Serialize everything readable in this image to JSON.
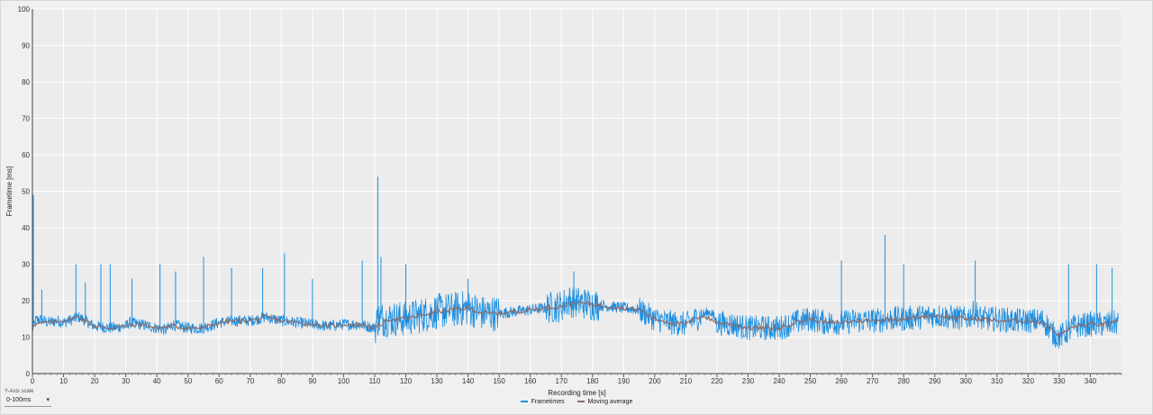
{
  "chart_data": {
    "type": "line",
    "xlabel": "Recording time [s]",
    "ylabel": "Frametime [ms]",
    "xlim": [
      0,
      350
    ],
    "ylim": [
      0,
      100
    ],
    "x_ticks": [
      0,
      10,
      20,
      30,
      40,
      50,
      60,
      70,
      80,
      90,
      100,
      110,
      120,
      130,
      140,
      150,
      160,
      170,
      180,
      190,
      200,
      210,
      220,
      230,
      240,
      250,
      260,
      270,
      280,
      290,
      300,
      310,
      320,
      330,
      340
    ],
    "y_ticks": [
      0,
      10,
      20,
      30,
      40,
      50,
      60,
      70,
      80,
      90,
      100
    ],
    "grid": true,
    "legend_position": "bottom-center",
    "series": [
      {
        "name": "Frametimes",
        "color": "#1e8fe0",
        "x": [
          0,
          1,
          2,
          5,
          8,
          10,
          15,
          20,
          25,
          30,
          31,
          35,
          40,
          43,
          45,
          50,
          55,
          60,
          65,
          70,
          75,
          80,
          85,
          90,
          95,
          100,
          105,
          110,
          111,
          115,
          120,
          125,
          130,
          135,
          140,
          145,
          150,
          155,
          160,
          165,
          170,
          172,
          175,
          180,
          185,
          190,
          195,
          200,
          205,
          210,
          215,
          218,
          220,
          225,
          230,
          235,
          240,
          245,
          250,
          255,
          260,
          265,
          270,
          275,
          280,
          285,
          290,
          295,
          300,
          303,
          305,
          310,
          315,
          320,
          325,
          328,
          330,
          335,
          340,
          345,
          349
        ],
        "values": [
          12,
          14.5,
          15,
          14,
          14.5,
          14,
          15.5,
          13,
          12.5,
          13,
          14,
          13.5,
          12.5,
          12,
          13.5,
          12.5,
          12.5,
          14,
          14.5,
          14.5,
          15.5,
          14.5,
          14,
          13.5,
          13,
          13.5,
          13.5,
          12.5,
          15,
          15,
          15,
          16,
          17,
          17.5,
          18,
          16.5,
          16.5,
          17,
          17.5,
          18,
          18.5,
          20,
          19.5,
          19,
          18.5,
          18,
          17.5,
          15,
          14,
          13.5,
          16,
          17,
          14,
          13.5,
          12.5,
          12.5,
          12.5,
          14,
          15,
          14,
          14,
          14.5,
          14.5,
          15,
          15,
          15.5,
          16,
          15.5,
          15,
          17,
          15,
          15,
          14.5,
          14.5,
          14.5,
          11,
          10,
          13,
          13.5,
          13.5,
          14
        ]
      },
      {
        "name": "Moving average",
        "color": "#8a6a6a",
        "x": [
          0,
          5,
          10,
          15,
          20,
          25,
          30,
          35,
          40,
          45,
          50,
          55,
          60,
          65,
          70,
          75,
          80,
          85,
          90,
          95,
          100,
          105,
          110,
          115,
          120,
          125,
          130,
          135,
          140,
          145,
          150,
          155,
          160,
          165,
          170,
          175,
          180,
          185,
          190,
          195,
          200,
          205,
          210,
          215,
          220,
          225,
          230,
          235,
          240,
          245,
          250,
          255,
          260,
          265,
          270,
          275,
          280,
          285,
          290,
          295,
          300,
          305,
          310,
          315,
          320,
          325,
          330,
          335,
          340,
          345,
          349
        ],
        "values": [
          13.5,
          14,
          14.5,
          15.5,
          13,
          12.5,
          13,
          13.5,
          12.5,
          13,
          12.5,
          12.5,
          14,
          14.5,
          14.5,
          15.5,
          14.5,
          14,
          13.5,
          13,
          13.5,
          13.5,
          12.5,
          15,
          15,
          16,
          17,
          17.5,
          18,
          16.5,
          16.5,
          17,
          17.5,
          18,
          18.5,
          19.5,
          19,
          18.5,
          18,
          17.5,
          15,
          14,
          13.5,
          16,
          14,
          13.5,
          12.5,
          12.5,
          12.5,
          14,
          15,
          14,
          14,
          14.5,
          14.5,
          15,
          15,
          15.5,
          16,
          15.5,
          15,
          15,
          14.5,
          14.5,
          14.5,
          14,
          10.5,
          13,
          13.5,
          13.5,
          14
        ]
      }
    ],
    "spikes": [
      {
        "x": 0.3,
        "y": 49
      },
      {
        "x": 3,
        "y": 23
      },
      {
        "x": 14,
        "y": 30
      },
      {
        "x": 17,
        "y": 25
      },
      {
        "x": 22,
        "y": 30
      },
      {
        "x": 25,
        "y": 30
      },
      {
        "x": 32,
        "y": 26
      },
      {
        "x": 41,
        "y": 30
      },
      {
        "x": 46,
        "y": 28
      },
      {
        "x": 55,
        "y": 32
      },
      {
        "x": 64,
        "y": 29
      },
      {
        "x": 74,
        "y": 29
      },
      {
        "x": 81,
        "y": 33
      },
      {
        "x": 90,
        "y": 26
      },
      {
        "x": 106,
        "y": 31
      },
      {
        "x": 111,
        "y": 54
      },
      {
        "x": 112,
        "y": 32
      },
      {
        "x": 120,
        "y": 30
      },
      {
        "x": 140,
        "y": 26
      },
      {
        "x": 174,
        "y": 28
      },
      {
        "x": 260,
        "y": 31
      },
      {
        "x": 274,
        "y": 38
      },
      {
        "x": 280,
        "y": 30
      },
      {
        "x": 303,
        "y": 31
      },
      {
        "x": 333,
        "y": 30
      },
      {
        "x": 342,
        "y": 30
      },
      {
        "x": 347,
        "y": 29
      }
    ]
  },
  "controls": {
    "yscale_label": "Y-Axis scale",
    "yscale_value": "0-100ms",
    "yscale_chevron": "▾"
  }
}
